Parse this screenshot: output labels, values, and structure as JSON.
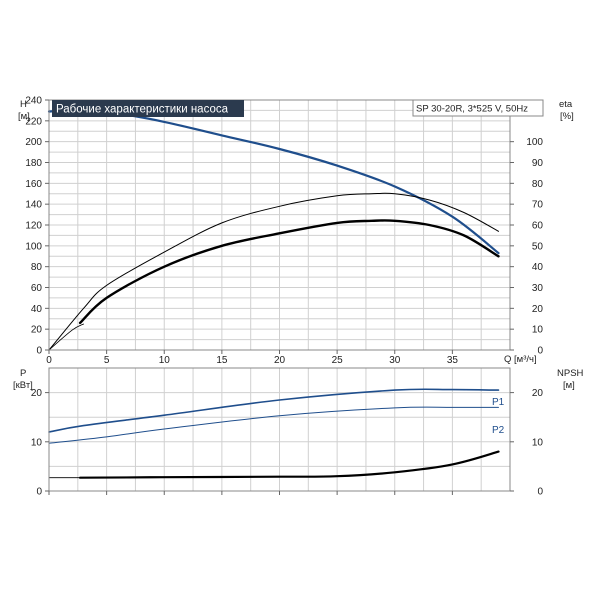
{
  "colors": {
    "blue": "#1f4e8c",
    "black": "#000000",
    "title_bg": "#2b3a4e",
    "grid": "#d0d0d0"
  },
  "chart_data": [
    {
      "type": "line",
      "title": "Рабочие характеристики насоса",
      "subtitle": "SP 30-20R, 3*525 V, 50Hz",
      "xlabel": "Q [м³/ч]",
      "ylabel_left": "H",
      "ylabel_left_unit": "[м]",
      "ylabel_right": "eta",
      "ylabel_right_unit": "[%]",
      "xlim": [
        0,
        40
      ],
      "ylim_left": [
        0,
        240
      ],
      "ylim_right": [
        0,
        120
      ],
      "x_ticks": [
        0,
        5,
        10,
        15,
        20,
        25,
        30,
        35
      ],
      "y_left_ticks": [
        0,
        20,
        40,
        60,
        80,
        100,
        120,
        140,
        160,
        180,
        200,
        220,
        240
      ],
      "y_right_ticks": [
        0,
        10,
        20,
        30,
        40,
        50,
        60,
        70,
        80,
        90,
        100
      ],
      "grid": true,
      "series": [
        {
          "axis": "left",
          "color": "blue",
          "width": 2.2,
          "x": [
            0,
            3,
            6,
            10,
            15,
            20,
            25,
            30,
            35,
            39
          ],
          "values": [
            229,
            231,
            227,
            219,
            206,
            193,
            177,
            157,
            128,
            93
          ]
        },
        {
          "axis": "right",
          "color": "black",
          "width": 1,
          "x": [
            0,
            3,
            5,
            10,
            15,
            20,
            25,
            28,
            30,
            33,
            36,
            39
          ],
          "values": [
            0,
            20,
            31,
            47,
            61,
            69,
            74,
            75,
            75,
            72,
            66,
            57
          ]
        },
        {
          "axis": "right",
          "color": "black",
          "width": 2.4,
          "x": [
            2.7,
            5,
            10,
            15,
            20,
            25,
            28,
            30,
            33,
            36,
            39
          ],
          "values": [
            13,
            25,
            40,
            50,
            56,
            61,
            62,
            62,
            60,
            55,
            45
          ]
        },
        {
          "axis": "left",
          "color": "black",
          "width": 0.8,
          "x": [
            0,
            2,
            3
          ],
          "values": [
            0,
            19,
            25
          ]
        }
      ]
    },
    {
      "type": "line",
      "xlim": [
        0,
        40
      ],
      "ylabel_left": "P",
      "ylabel_left_unit": "[кВт]",
      "ylabel_right": "NPSH",
      "ylabel_right_unit": "[м]",
      "ylim_left": [
        0,
        25
      ],
      "ylim_right": [
        0,
        25
      ],
      "y_left_ticks": [
        0,
        10,
        20
      ],
      "y_right_ticks": [
        0,
        10,
        20
      ],
      "grid": true,
      "series": [
        {
          "name": "P1",
          "axis": "left",
          "color": "blue",
          "width": 1.6,
          "x": [
            0,
            3,
            10,
            20,
            30,
            35,
            39
          ],
          "values": [
            12,
            13.3,
            15.4,
            18.5,
            20.5,
            20.6,
            20.5
          ]
        },
        {
          "name": "P2",
          "axis": "left",
          "color": "blue",
          "width": 1,
          "x": [
            0,
            5,
            10,
            20,
            30,
            35,
            39
          ],
          "values": [
            9.7,
            11,
            12.6,
            15.3,
            16.9,
            17,
            17
          ]
        },
        {
          "axis": "right",
          "color": "black",
          "width": 2.2,
          "x": [
            2.7,
            10,
            20,
            25,
            30,
            35,
            39
          ],
          "values": [
            2.7,
            2.8,
            2.9,
            3,
            3.8,
            5.4,
            8
          ]
        },
        {
          "axis": "right",
          "color": "black",
          "width": 0.8,
          "x": [
            0,
            2.7
          ],
          "values": [
            2.7,
            2.7
          ]
        }
      ]
    }
  ]
}
